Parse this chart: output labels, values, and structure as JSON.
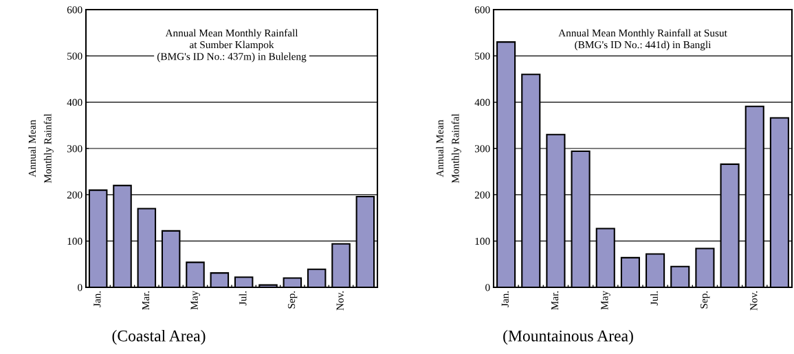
{
  "chart_data": [
    {
      "type": "bar",
      "title": "Annual Mean Monthly Rainfall\nat Sumber Klampok\n(BMG's ID No.: 437m) in Buleleng",
      "ylabel": "Annual Mean\nMonthly Rainfal",
      "categories": [
        "Jan.",
        null,
        "Mar.",
        null,
        "May",
        null,
        "Jul.",
        null,
        "Sep.",
        null,
        "Nov.",
        null
      ],
      "values": [
        210,
        220,
        170,
        122,
        54,
        31,
        22,
        5,
        20,
        39,
        94,
        196
      ],
      "color": "#9595c8",
      "ylim": [
        0,
        600
      ],
      "yticks": [
        0,
        100,
        200,
        300,
        400,
        500,
        600
      ],
      "grid": "y",
      "annotations": [
        "(Coastal Area)"
      ]
    },
    {
      "type": "bar",
      "title": "Annual Mean Monthly Rainfall at Susut\n(BMG's ID No.: 441d) in Bangli",
      "ylabel": "Annual Mean\nMonthly Rainfal",
      "categories": [
        "Jan.",
        null,
        "Mar.",
        null,
        "May",
        null,
        "Jul.",
        null,
        "Sep.",
        null,
        "Nov.",
        null
      ],
      "values": [
        530,
        460,
        330,
        294,
        127,
        64,
        72,
        45,
        84,
        266,
        391,
        366
      ],
      "color": "#9595c8",
      "ylim": [
        0,
        600
      ],
      "yticks": [
        0,
        100,
        200,
        300,
        400,
        500,
        600
      ],
      "grid": "y",
      "annotations": [
        "(Mountainous Area)"
      ]
    }
  ]
}
